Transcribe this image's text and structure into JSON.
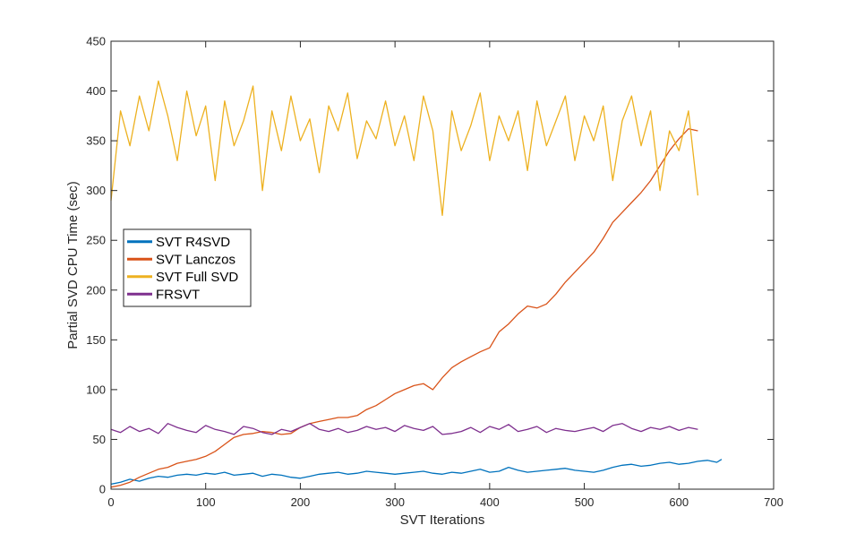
{
  "chart_data": {
    "type": "line",
    "title": "",
    "xlabel": "SVT Iterations",
    "ylabel": "Partial SVD CPU Time (sec)",
    "xlim": [
      0,
      700
    ],
    "ylim": [
      0,
      450
    ],
    "xticks": [
      0,
      100,
      200,
      300,
      400,
      500,
      600,
      700
    ],
    "yticks": [
      0,
      50,
      100,
      150,
      200,
      250,
      300,
      350,
      400,
      450
    ],
    "grid": false,
    "legend_position": "center-left",
    "series": [
      {
        "name": "SVT R4SVD",
        "color": "#0072BD",
        "x": [
          0,
          10,
          20,
          30,
          40,
          50,
          60,
          70,
          80,
          90,
          100,
          110,
          120,
          130,
          140,
          150,
          160,
          170,
          180,
          190,
          200,
          210,
          220,
          230,
          240,
          250,
          260,
          270,
          280,
          290,
          300,
          310,
          320,
          330,
          340,
          350,
          360,
          370,
          380,
          390,
          400,
          410,
          420,
          430,
          440,
          450,
          460,
          470,
          480,
          490,
          500,
          510,
          520,
          530,
          540,
          550,
          560,
          570,
          580,
          590,
          600,
          610,
          620,
          630,
          640,
          645
        ],
        "y": [
          5,
          7,
          10,
          8,
          11,
          13,
          12,
          14,
          15,
          14,
          16,
          15,
          17,
          14,
          15,
          16,
          13,
          15,
          14,
          12,
          11,
          13,
          15,
          16,
          17,
          15,
          16,
          18,
          17,
          16,
          15,
          16,
          17,
          18,
          16,
          15,
          17,
          16,
          18,
          20,
          17,
          18,
          22,
          19,
          17,
          18,
          19,
          20,
          21,
          19,
          18,
          17,
          19,
          22,
          24,
          25,
          23,
          24,
          26,
          27,
          25,
          26,
          28,
          29,
          27,
          30
        ]
      },
      {
        "name": "SVT Lanczos",
        "color": "#D95319",
        "x": [
          0,
          10,
          20,
          30,
          40,
          50,
          60,
          70,
          80,
          90,
          100,
          110,
          120,
          130,
          140,
          150,
          160,
          170,
          180,
          190,
          200,
          210,
          220,
          230,
          240,
          250,
          260,
          270,
          280,
          290,
          300,
          310,
          320,
          330,
          340,
          350,
          360,
          370,
          380,
          390,
          400,
          410,
          420,
          430,
          440,
          450,
          460,
          470,
          480,
          490,
          500,
          510,
          520,
          530,
          540,
          550,
          560,
          570,
          580,
          590,
          600,
          610,
          620
        ],
        "y": [
          2,
          4,
          7,
          12,
          16,
          20,
          22,
          26,
          28,
          30,
          33,
          38,
          45,
          52,
          55,
          56,
          58,
          57,
          55,
          56,
          62,
          66,
          68,
          70,
          72,
          72,
          74,
          80,
          84,
          90,
          96,
          100,
          104,
          106,
          100,
          112,
          122,
          128,
          133,
          138,
          142,
          158,
          166,
          176,
          184,
          182,
          186,
          196,
          208,
          218,
          228,
          238,
          252,
          268,
          278,
          288,
          298,
          310,
          325,
          340,
          352,
          362,
          360
        ]
      },
      {
        "name": "SVT Full SVD",
        "color": "#EDB120",
        "x": [
          0,
          10,
          20,
          30,
          40,
          50,
          60,
          70,
          80,
          90,
          100,
          110,
          120,
          130,
          140,
          150,
          160,
          170,
          180,
          190,
          200,
          210,
          220,
          230,
          240,
          250,
          260,
          270,
          280,
          290,
          300,
          310,
          320,
          330,
          340,
          350,
          360,
          370,
          380,
          390,
          400,
          410,
          420,
          430,
          440,
          450,
          460,
          470,
          480,
          490,
          500,
          510,
          520,
          530,
          540,
          550,
          560,
          570,
          580,
          590,
          600,
          610,
          620
        ],
        "y": [
          290,
          380,
          345,
          395,
          360,
          410,
          375,
          330,
          400,
          355,
          385,
          310,
          390,
          345,
          370,
          405,
          300,
          380,
          340,
          395,
          350,
          372,
          318,
          385,
          360,
          398,
          332,
          370,
          352,
          390,
          345,
          375,
          330,
          395,
          360,
          275,
          380,
          340,
          365,
          398,
          330,
          375,
          350,
          380,
          320,
          390,
          345,
          370,
          395,
          330,
          375,
          350,
          385,
          310,
          370,
          395,
          345,
          380,
          300,
          360,
          340,
          380,
          295
        ]
      },
      {
        "name": "FRSVT",
        "color": "#7E2F8E",
        "x": [
          0,
          10,
          20,
          30,
          40,
          50,
          60,
          70,
          80,
          90,
          100,
          110,
          120,
          130,
          140,
          150,
          160,
          170,
          180,
          190,
          200,
          210,
          220,
          230,
          240,
          250,
          260,
          270,
          280,
          290,
          300,
          310,
          320,
          330,
          340,
          350,
          360,
          370,
          380,
          390,
          400,
          410,
          420,
          430,
          440,
          450,
          460,
          470,
          480,
          490,
          500,
          510,
          520,
          530,
          540,
          550,
          560,
          570,
          580,
          590,
          600,
          610,
          620
        ],
        "y": [
          60,
          57,
          63,
          58,
          61,
          56,
          66,
          62,
          59,
          57,
          64,
          60,
          58,
          55,
          63,
          61,
          57,
          55,
          60,
          58,
          62,
          66,
          60,
          58,
          61,
          57,
          59,
          63,
          60,
          62,
          58,
          64,
          61,
          59,
          63,
          55,
          56,
          58,
          62,
          57,
          63,
          60,
          65,
          58,
          60,
          63,
          57,
          61,
          59,
          58,
          60,
          62,
          58,
          64,
          66,
          61,
          58,
          62,
          60,
          63,
          59,
          62,
          60
        ]
      }
    ]
  }
}
